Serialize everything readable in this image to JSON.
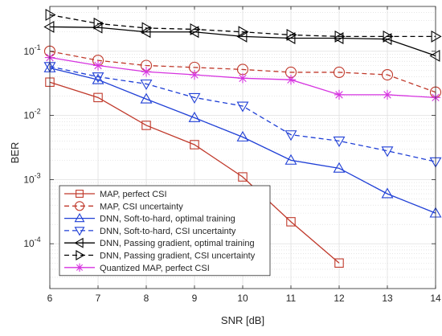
{
  "chart_data": {
    "type": "line",
    "xlabel": "SNR [dB]",
    "ylabel": "BER",
    "x_scale": "linear",
    "y_scale": "log",
    "xlim": [
      6,
      14
    ],
    "ylim": [
      2e-05,
      0.5
    ],
    "x_ticks": [
      "6",
      "7",
      "8",
      "9",
      "10",
      "11",
      "12",
      "13",
      "14"
    ],
    "y_ticks": [
      {
        "value": 0.0001,
        "base": "10",
        "exp": "-4"
      },
      {
        "value": 0.001,
        "base": "10",
        "exp": "-3"
      },
      {
        "value": 0.01,
        "base": "10",
        "exp": "-2"
      },
      {
        "value": 0.1,
        "base": "10",
        "exp": "-1"
      }
    ],
    "grid": true,
    "minor_grid": true,
    "legend_position": "bottom-left",
    "series": [
      {
        "name": "MAP, perfect CSI",
        "color": "#c0392b",
        "dash": "solid",
        "marker": "square",
        "x": [
          6,
          7,
          8,
          9,
          10,
          11,
          12
        ],
        "y": [
          0.033,
          0.019,
          0.007,
          0.0035,
          0.0011,
          0.00022,
          5e-05
        ]
      },
      {
        "name": "MAP, CSI uncertainty",
        "color": "#c0392b",
        "dash": "dashed",
        "marker": "circle",
        "x": [
          6,
          7,
          8,
          9,
          10,
          11,
          12,
          13,
          14
        ],
        "y": [
          0.1,
          0.072,
          0.06,
          0.056,
          0.052,
          0.047,
          0.047,
          0.043,
          0.023
        ]
      },
      {
        "name": "DNN, Soft-to-hard, optimal training",
        "color": "#1f3fd6",
        "dash": "solid",
        "marker": "triangle-up",
        "x": [
          6,
          7,
          8,
          9,
          10,
          11,
          12,
          13,
          14
        ],
        "y": [
          0.055,
          0.036,
          0.018,
          0.0092,
          0.0046,
          0.002,
          0.0015,
          0.0006,
          0.0003
        ]
      },
      {
        "name": "DNN, Soft-to-hard, CSI uncertainty",
        "color": "#1f3fd6",
        "dash": "dashed",
        "marker": "triangle-down",
        "x": [
          6,
          7,
          8,
          9,
          10,
          11,
          12,
          13,
          14
        ],
        "y": [
          0.058,
          0.04,
          0.031,
          0.019,
          0.014,
          0.005,
          0.004,
          0.0028,
          0.0019
        ]
      },
      {
        "name": "DNN, Passing gradient, optimal training",
        "color": "#000000",
        "dash": "solid",
        "marker": "triangle-left",
        "x": [
          6,
          7,
          8,
          9,
          10,
          11,
          12,
          13,
          14
        ],
        "y": [
          0.24,
          0.235,
          0.2,
          0.2,
          0.17,
          0.16,
          0.16,
          0.155,
          0.085
        ]
      },
      {
        "name": "DNN, Passing gradient, CSI uncertainty",
        "color": "#000000",
        "dash": "dashed",
        "marker": "triangle-right",
        "x": [
          6,
          7,
          8,
          9,
          10,
          11,
          12,
          13,
          14
        ],
        "y": [
          0.37,
          0.27,
          0.23,
          0.22,
          0.2,
          0.18,
          0.17,
          0.17,
          0.17
        ]
      },
      {
        "name": "Quantized MAP, perfect CSI",
        "color": "#d633e0",
        "dash": "solid",
        "marker": "asterisk",
        "x": [
          6,
          7,
          8,
          9,
          10,
          11,
          12,
          13,
          14
        ],
        "y": [
          0.08,
          0.06,
          0.048,
          0.043,
          0.038,
          0.036,
          0.021,
          0.021,
          0.019
        ]
      }
    ]
  }
}
